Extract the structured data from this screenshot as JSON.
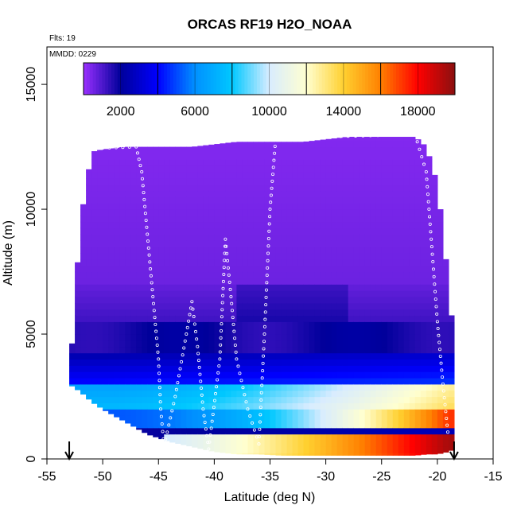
{
  "chart_data": {
    "type": "heatmap",
    "title": "ORCAS RF19 H2O_NOAA",
    "xlabel": "Latitude (deg N)",
    "ylabel": "Altitude (m)",
    "xlim": [
      -55,
      -15
    ],
    "ylim": [
      0,
      16500
    ],
    "x_ticks": [
      -55,
      -50,
      -45,
      -40,
      -35,
      -30,
      -25,
      -20,
      -15
    ],
    "y_ticks": [
      0,
      5000,
      10000,
      15000
    ],
    "annotations": {
      "flights": "Flts: 19",
      "date": "MMDD: 0229"
    },
    "colorbar": {
      "range": [
        0,
        20000
      ],
      "ticks": [
        2000,
        6000,
        10000,
        14000,
        18000
      ],
      "stops": [
        {
          "v": 0,
          "c": "#9a30ff"
        },
        {
          "v": 2000,
          "c": "#00009a"
        },
        {
          "v": 4000,
          "c": "#0000ff"
        },
        {
          "v": 6000,
          "c": "#0090ff"
        },
        {
          "v": 8000,
          "c": "#00c8ff"
        },
        {
          "v": 10000,
          "c": "#d8ecff"
        },
        {
          "v": 12000,
          "c": "#ffffd0"
        },
        {
          "v": 14000,
          "c": "#ffd030"
        },
        {
          "v": 16000,
          "c": "#ff8000"
        },
        {
          "v": 18000,
          "c": "#ff0000"
        },
        {
          "v": 20000,
          "c": "#8a1010"
        }
      ]
    },
    "endpoint_markers_lat": [
      -53,
      -18.5
    ],
    "envelope": {
      "lat": [
        -53,
        -52,
        -51,
        -50,
        -48,
        -46,
        -44,
        -42,
        -40,
        -38,
        -36,
        -34,
        -32,
        -30,
        -28,
        -26,
        -24,
        -22,
        -21,
        -20,
        -19,
        -18.5
      ],
      "top": [
        3000,
        9500,
        12300,
        12400,
        12500,
        12500,
        12500,
        12500,
        12600,
        12700,
        12700,
        12700,
        12700,
        12800,
        12900,
        12900,
        12900,
        12900,
        12500,
        11000,
        7000,
        4500
      ],
      "bottom": [
        3000,
        2700,
        2300,
        2000,
        1500,
        1000,
        700,
        500,
        300,
        200,
        200,
        150,
        150,
        150,
        150,
        150,
        150,
        150,
        200,
        200,
        300,
        400
      ]
    },
    "field_model": "upper troposphere <1000 ppmv; moist layer 1000-3000 m increasing from ~9000 at -50 to ~20000 near -19",
    "flight_track": [
      {
        "lat": -52.5,
        "alt": 12300
      },
      {
        "lat": -50,
        "alt": 12450
      },
      {
        "lat": -47,
        "alt": 12500
      },
      {
        "lat": -46.5,
        "alt": 11500
      },
      {
        "lat": -46,
        "alt": 9000
      },
      {
        "lat": -45.5,
        "alt": 6500
      },
      {
        "lat": -45,
        "alt": 4000
      },
      {
        "lat": -44.8,
        "alt": 2000
      },
      {
        "lat": -44.5,
        "alt": 500
      },
      {
        "lat": -43.5,
        "alt": 2500
      },
      {
        "lat": -42.5,
        "alt": 5000
      },
      {
        "lat": -42,
        "alt": 6300
      },
      {
        "lat": -41.5,
        "alt": 4500
      },
      {
        "lat": -41,
        "alt": 2000
      },
      {
        "lat": -40.5,
        "alt": 400
      },
      {
        "lat": -39.5,
        "alt": 4000
      },
      {
        "lat": -39,
        "alt": 8800
      },
      {
        "lat": -38.5,
        "alt": 6500
      },
      {
        "lat": -38,
        "alt": 4000
      },
      {
        "lat": -37,
        "alt": 2000
      },
      {
        "lat": -36,
        "alt": 600
      },
      {
        "lat": -35.5,
        "alt": 5000
      },
      {
        "lat": -35,
        "alt": 10000
      },
      {
        "lat": -34.5,
        "alt": 12800
      },
      {
        "lat": -30,
        "alt": 12900
      },
      {
        "lat": -26,
        "alt": 12950
      },
      {
        "lat": -22,
        "alt": 13000
      },
      {
        "lat": -21,
        "alt": 11500
      },
      {
        "lat": -20.5,
        "alt": 8500
      },
      {
        "lat": -20,
        "alt": 5500
      },
      {
        "lat": -19.5,
        "alt": 3000
      },
      {
        "lat": -19,
        "alt": 800
      }
    ]
  }
}
